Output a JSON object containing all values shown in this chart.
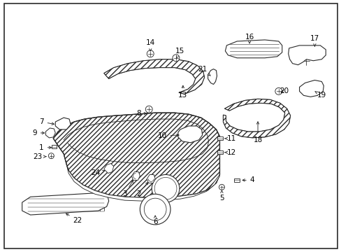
{
  "background_color": "#ffffff",
  "border_color": "#000000",
  "fig_width": 4.89,
  "fig_height": 3.6,
  "dpi": 100,
  "line_color": "#2a2a2a",
  "line_width": 0.8,
  "hatch_color": "#555555",
  "label_fontsize": 7.5,
  "label_color": "#000000"
}
